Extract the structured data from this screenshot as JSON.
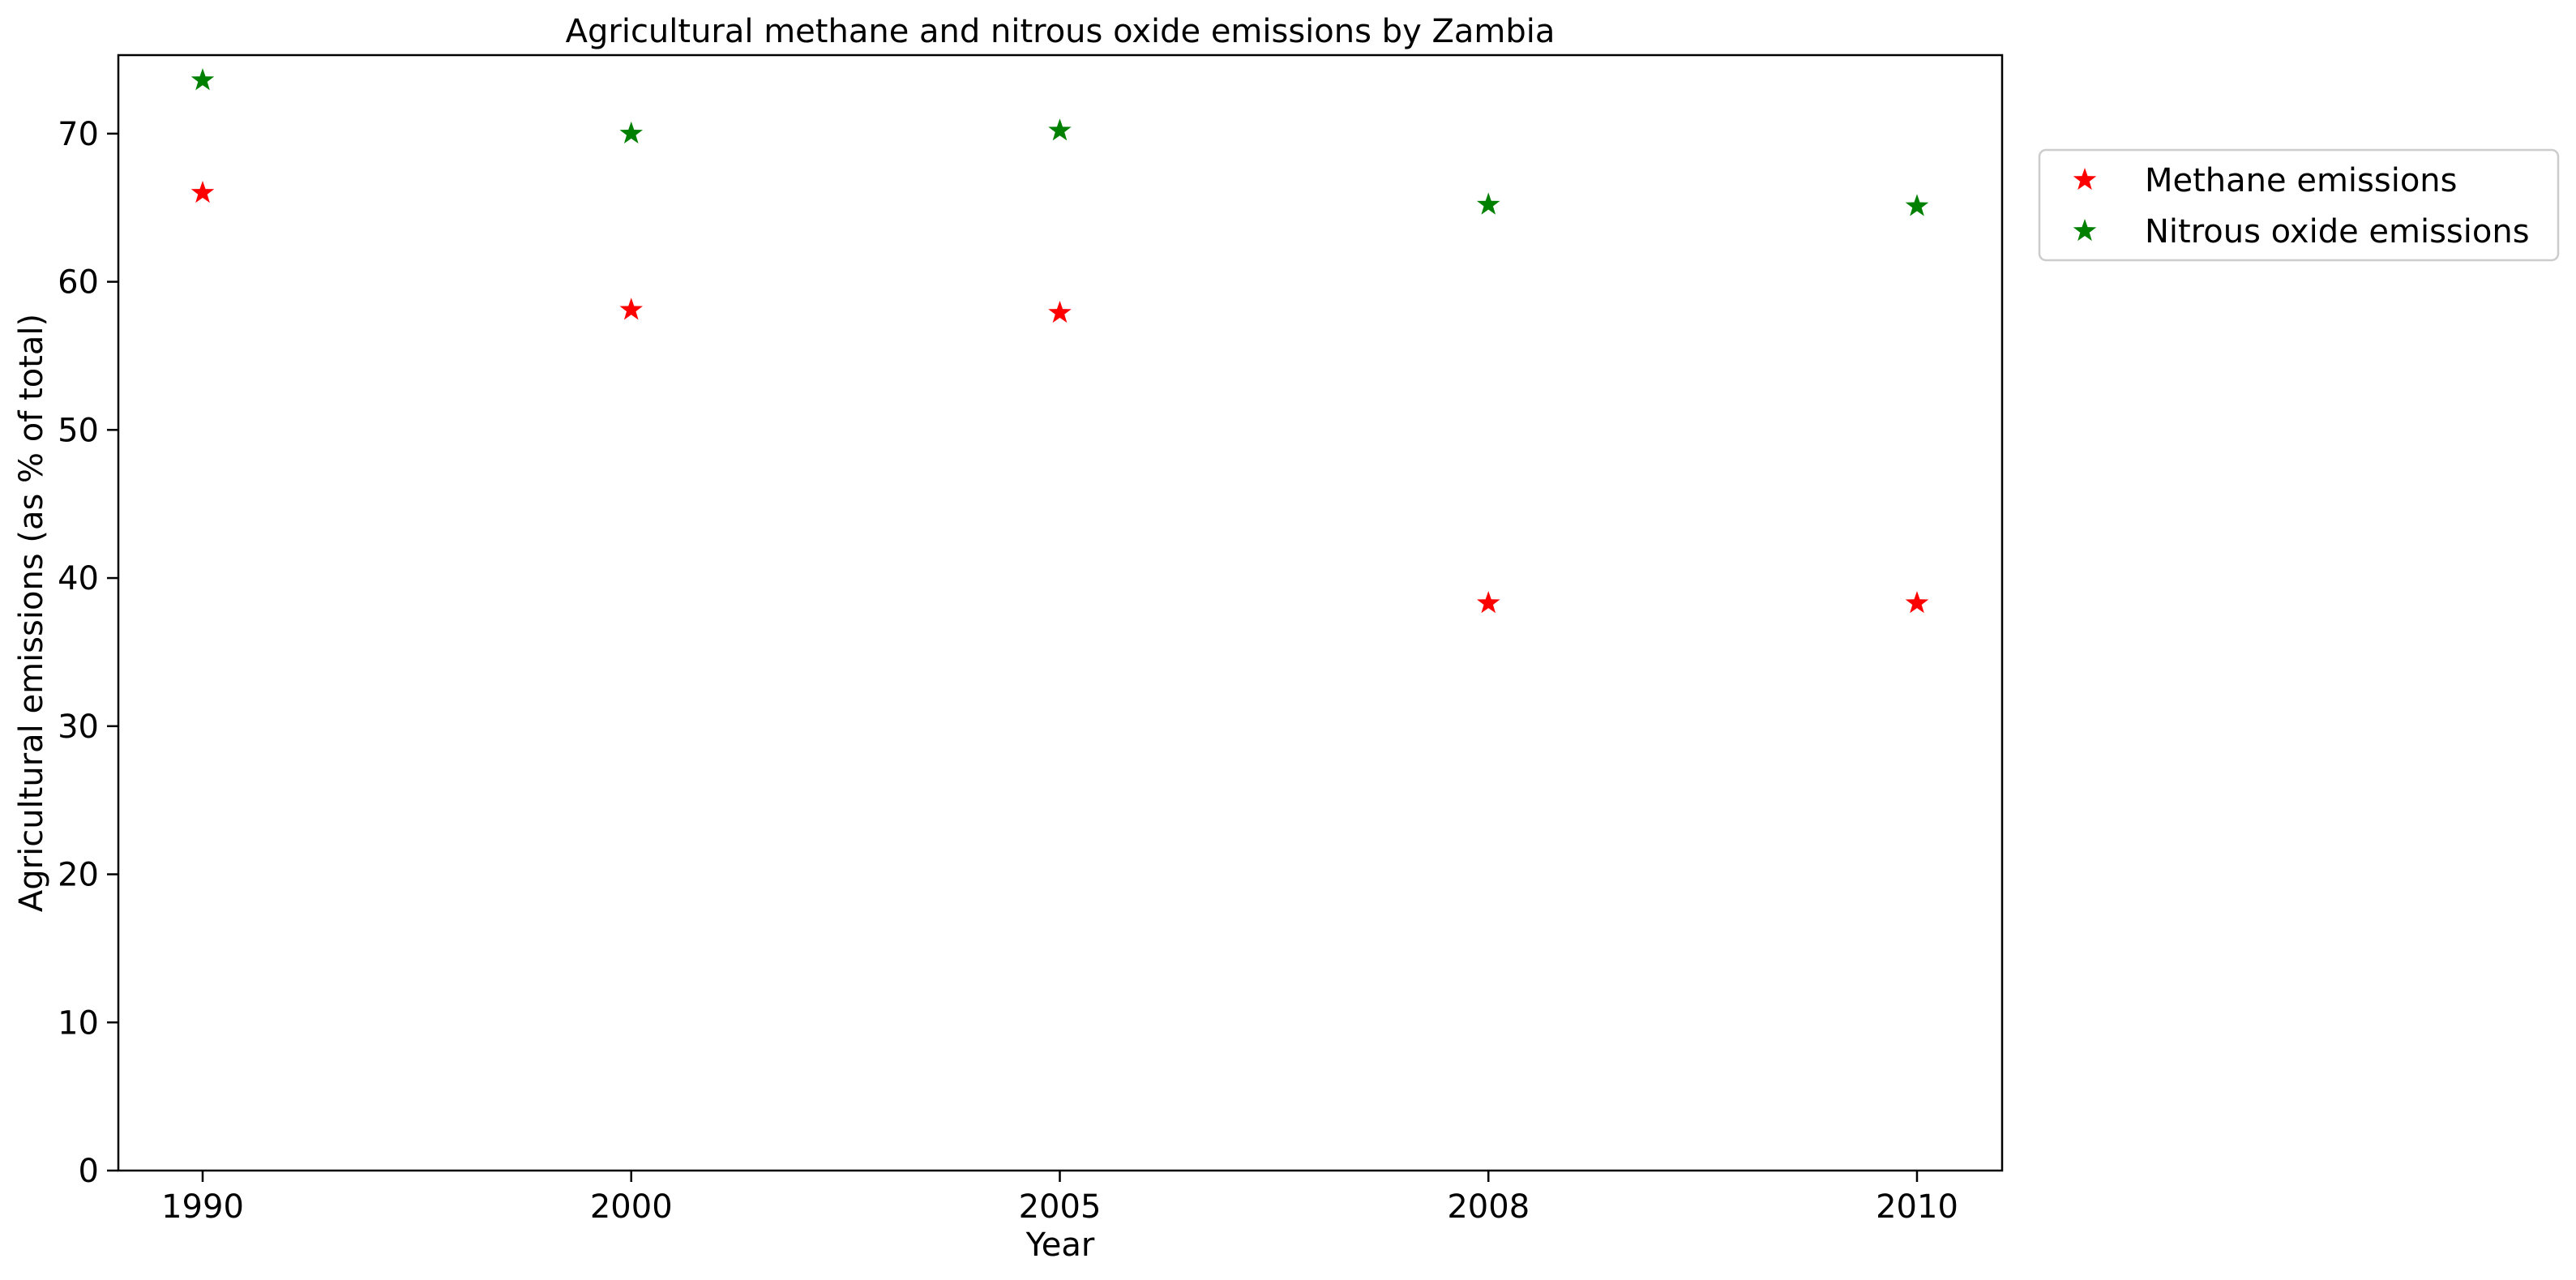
{
  "chart_data": {
    "type": "scatter",
    "title": "Agricultural methane and nitrous oxide emissions by Zambia",
    "xlabel": "Year",
    "ylabel": "Agricultural emissions (as % of total)",
    "categories": [
      "1990",
      "2000",
      "2005",
      "2008",
      "2010"
    ],
    "ylim": [
      0,
      75.3
    ],
    "yticks": [
      0,
      10,
      20,
      30,
      40,
      50,
      60,
      70
    ],
    "grid": false,
    "legend_position": "outside upper right",
    "marker": "star",
    "series": [
      {
        "name": "Methane emissions",
        "color": "#ff0000",
        "values": [
          66.0,
          58.1,
          57.9,
          38.3,
          38.3
        ]
      },
      {
        "name": "Nitrous oxide emissions",
        "color": "#008000",
        "values": [
          73.6,
          70.0,
          70.2,
          65.2,
          65.1
        ]
      }
    ]
  }
}
